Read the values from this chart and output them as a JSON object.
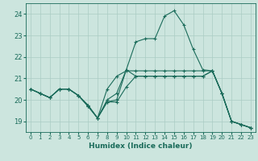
{
  "xlabel": "Humidex (Indice chaleur)",
  "xlim": [
    -0.5,
    23.5
  ],
  "ylim": [
    18.5,
    24.5
  ],
  "yticks": [
    19,
    20,
    21,
    22,
    23,
    24
  ],
  "xticks": [
    0,
    1,
    2,
    3,
    4,
    5,
    6,
    7,
    8,
    9,
    10,
    11,
    12,
    13,
    14,
    15,
    16,
    17,
    18,
    19,
    20,
    21,
    22,
    23
  ],
  "bg_color": "#cce5de",
  "grid_color": "#aaccC4",
  "line_color": "#1a6b5a",
  "lines": [
    [
      20.5,
      20.3,
      20.1,
      20.5,
      20.5,
      20.2,
      19.7,
      19.15,
      19.9,
      20.0,
      21.4,
      21.1,
      21.1,
      21.1,
      21.1,
      21.1,
      21.1,
      21.1,
      21.1,
      21.35,
      20.3,
      19.0,
      18.85,
      18.7
    ],
    [
      20.5,
      20.3,
      20.1,
      20.5,
      20.5,
      20.2,
      19.7,
      19.15,
      20.0,
      20.3,
      21.4,
      22.7,
      22.85,
      22.85,
      23.9,
      24.15,
      23.5,
      22.35,
      21.4,
      21.35,
      20.3,
      19.0,
      18.85,
      18.7
    ],
    [
      20.5,
      20.3,
      20.1,
      20.5,
      20.5,
      20.2,
      19.75,
      19.15,
      19.9,
      19.9,
      20.6,
      21.1,
      21.1,
      21.1,
      21.1,
      21.1,
      21.1,
      21.1,
      21.1,
      21.35,
      20.3,
      19.0,
      18.85,
      18.7
    ],
    [
      20.5,
      20.3,
      20.1,
      20.5,
      20.5,
      20.2,
      19.75,
      19.15,
      20.5,
      21.1,
      21.35,
      21.35,
      21.35,
      21.35,
      21.35,
      21.35,
      21.35,
      21.35,
      21.35,
      21.35,
      20.3,
      19.0,
      18.85,
      18.7
    ]
  ]
}
